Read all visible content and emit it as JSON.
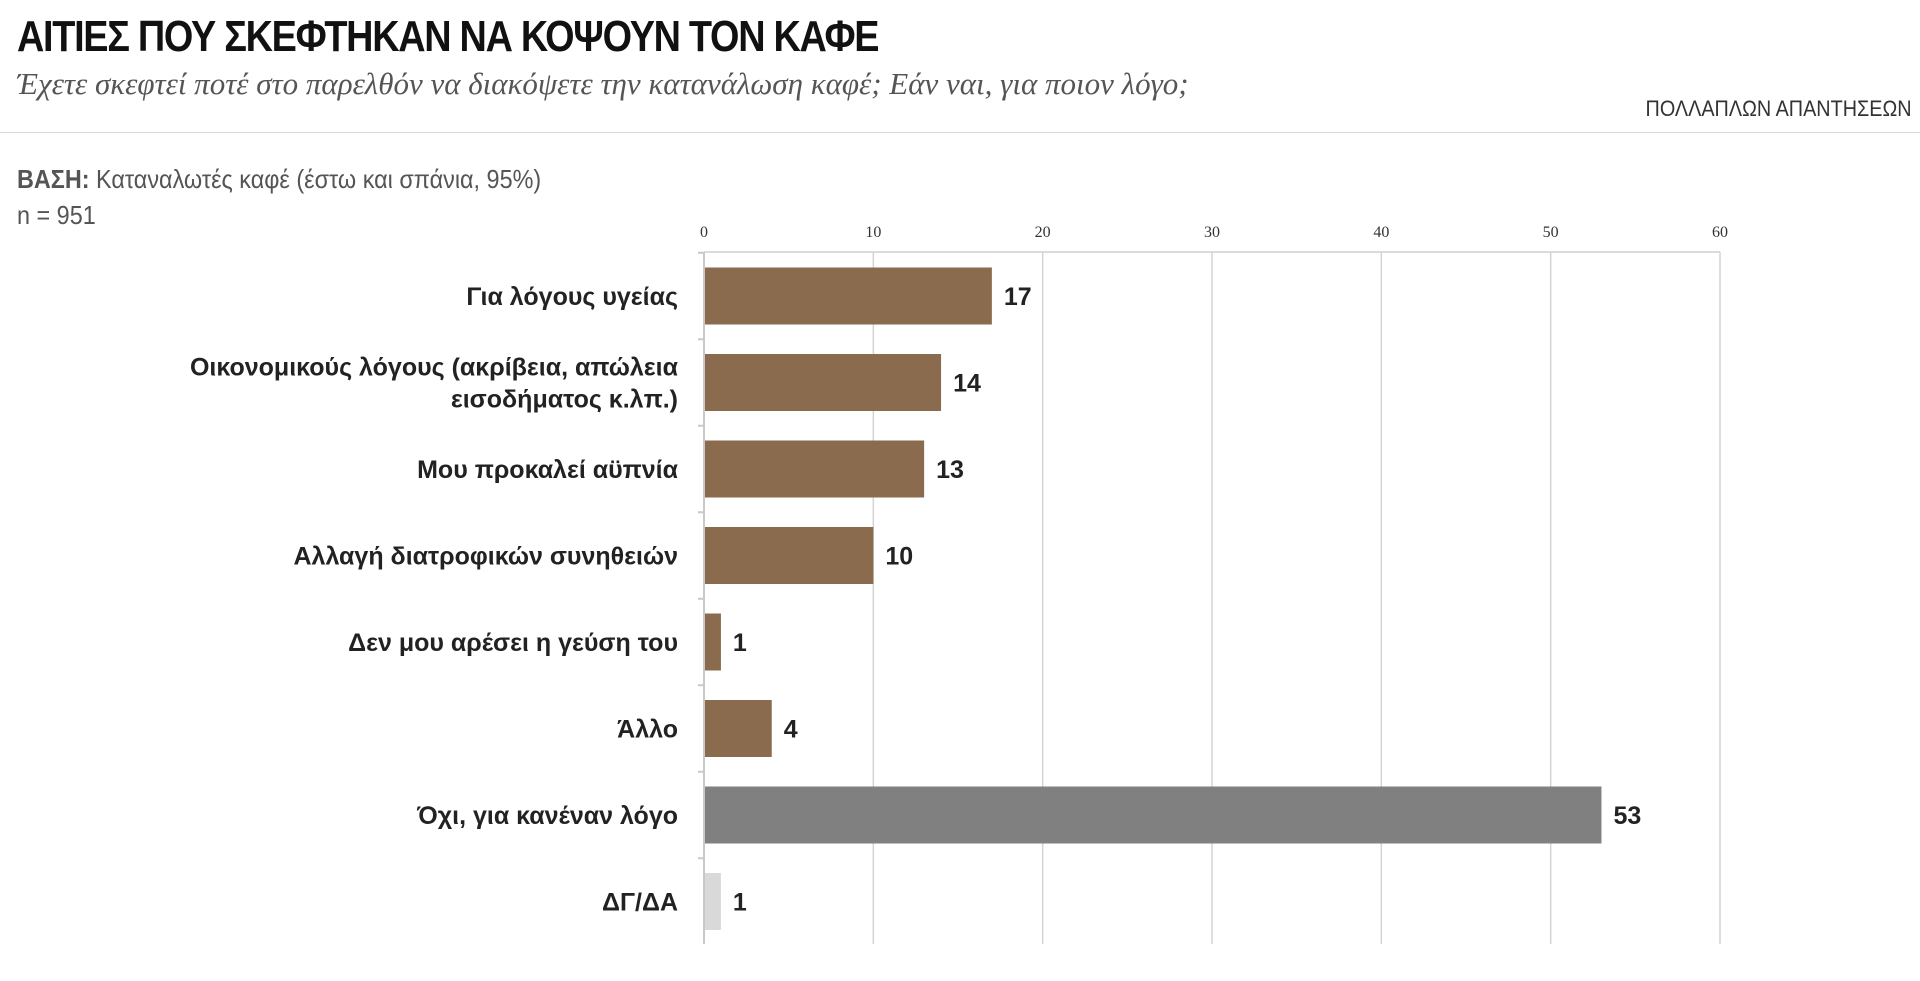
{
  "header": {
    "title": "ΑΙΤΙΕΣ ΠΟΥ ΣΚΕΦΤΗΚΑΝ ΝΑ ΚΟΨΟΥΝ ΤΟΝ ΚΑΦΕ",
    "subtitle": "Έχετε σκεφτεί ποτέ στο παρελθόν να διακόψετε την κατανάλωση καφέ; Εάν ναι, για ποιον λόγο;",
    "answer_type": "ΠΟΛΛΑΠΛΩΝ ΑΠΑΝΤΗΣΕΩΝ"
  },
  "base": {
    "label": "ΒΑΣΗ:",
    "text": "Καταναλωτές καφέ (έστω και σπάνια, 95%)",
    "n": "n = 951"
  },
  "chart_data": {
    "type": "bar",
    "orientation": "horizontal",
    "xlim": [
      0,
      60
    ],
    "ticks": [
      0,
      10,
      20,
      30,
      40,
      50,
      60
    ],
    "grid": true,
    "categories": [
      [
        "Για λόγους υγείας"
      ],
      [
        "Οικονομικούς λόγους (ακρίβεια, απώλεια",
        "εισοδήματος κ.λπ.)"
      ],
      [
        "Μου προκαλεί αϋπνία"
      ],
      [
        "Αλλαγή διατροφικών συνηθειών"
      ],
      [
        "Δεν μου αρέσει η γεύση του"
      ],
      [
        "Άλλο"
      ],
      [
        "Όχι, για κανέναν λόγο"
      ],
      [
        "ΔΓ/ΔΑ"
      ]
    ],
    "values": [
      17,
      14,
      13,
      10,
      1,
      4,
      53,
      1
    ],
    "colors": [
      "#8b6b4e",
      "#8b6b4e",
      "#8b6b4e",
      "#8b6b4e",
      "#8b6b4e",
      "#8b6b4e",
      "#808080",
      "#d9d9d9"
    ]
  }
}
